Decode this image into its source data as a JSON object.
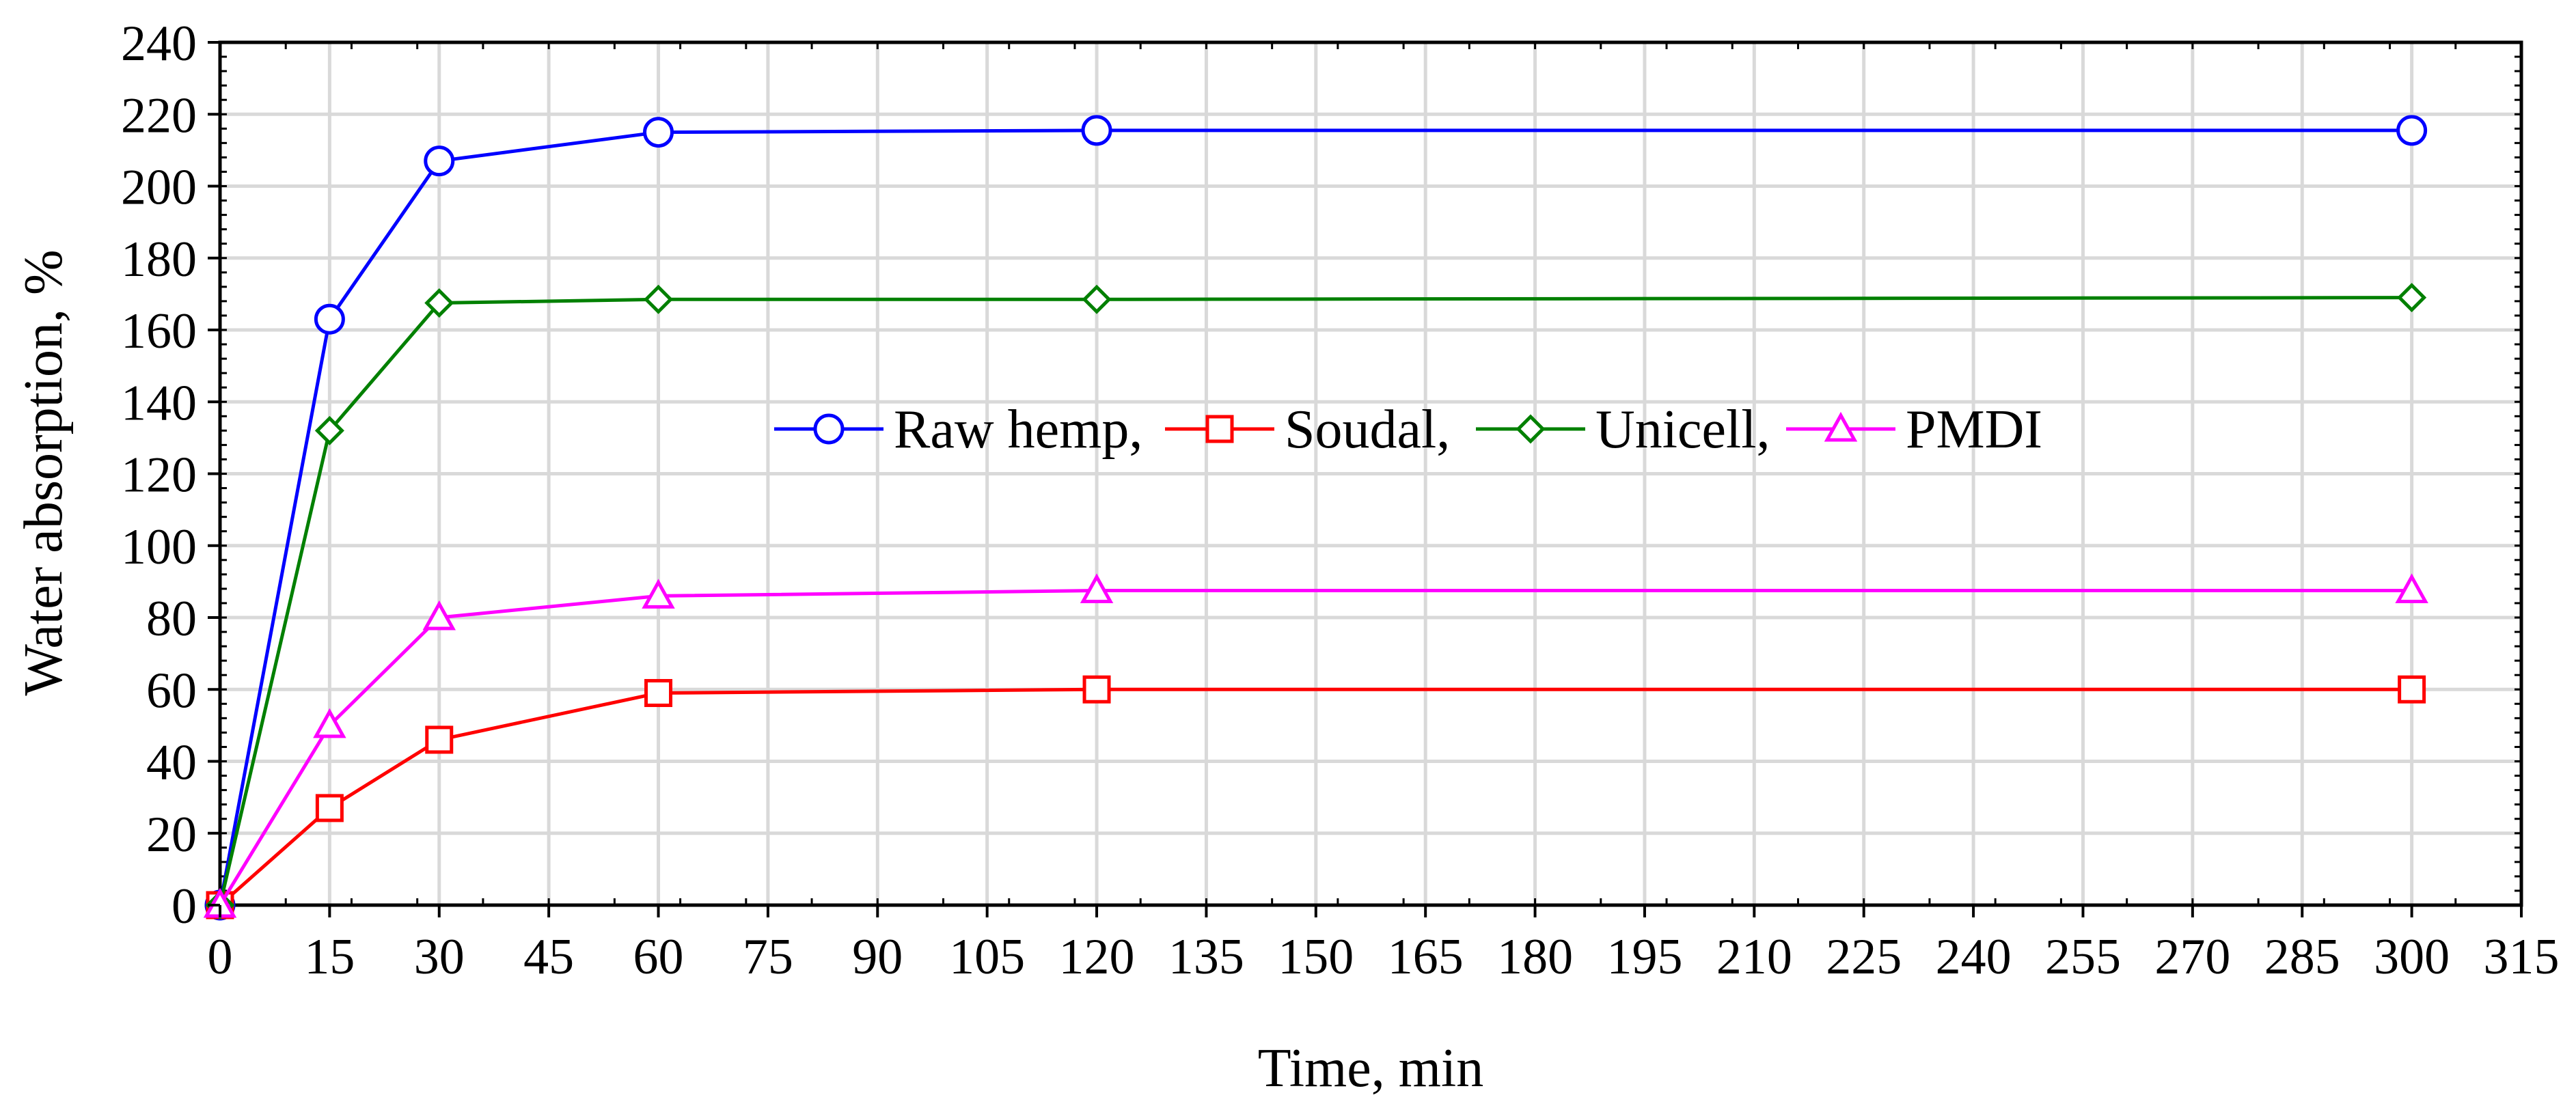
{
  "chart_data": {
    "type": "line",
    "title": "",
    "xlabel": "Time, min",
    "ylabel": "Water absorption, %",
    "xlim": [
      0,
      315
    ],
    "ylim": [
      0,
      240
    ],
    "x_ticks": [
      0,
      15,
      30,
      45,
      60,
      75,
      90,
      105,
      120,
      135,
      150,
      165,
      180,
      195,
      210,
      225,
      240,
      255,
      270,
      285,
      300,
      315
    ],
    "y_ticks": [
      0,
      20,
      40,
      60,
      80,
      100,
      120,
      140,
      160,
      180,
      200,
      220,
      240
    ],
    "grid": true,
    "legend_position": "center",
    "x": [
      0,
      15,
      30,
      60,
      120,
      300
    ],
    "series": [
      {
        "name": "Raw hemp",
        "legend_label": "Raw hemp,",
        "color": "#0000ff",
        "marker": "circle",
        "values": [
          0,
          163,
          207,
          215,
          215.5,
          215.5
        ]
      },
      {
        "name": "Soudal",
        "legend_label": "Soudal,",
        "color": "#ff0000",
        "marker": "square",
        "values": [
          0,
          27,
          46,
          59,
          60,
          60
        ]
      },
      {
        "name": "Unicell",
        "legend_label": "Unicell,",
        "color": "#008000",
        "marker": "diamond",
        "values": [
          0,
          132,
          167.5,
          168.5,
          168.5,
          169
        ]
      },
      {
        "name": "PMDI",
        "legend_label": "PMDI",
        "color": "#ff00ff",
        "marker": "triangle",
        "values": [
          0,
          50,
          80,
          86,
          87.5,
          87.5
        ]
      }
    ]
  }
}
